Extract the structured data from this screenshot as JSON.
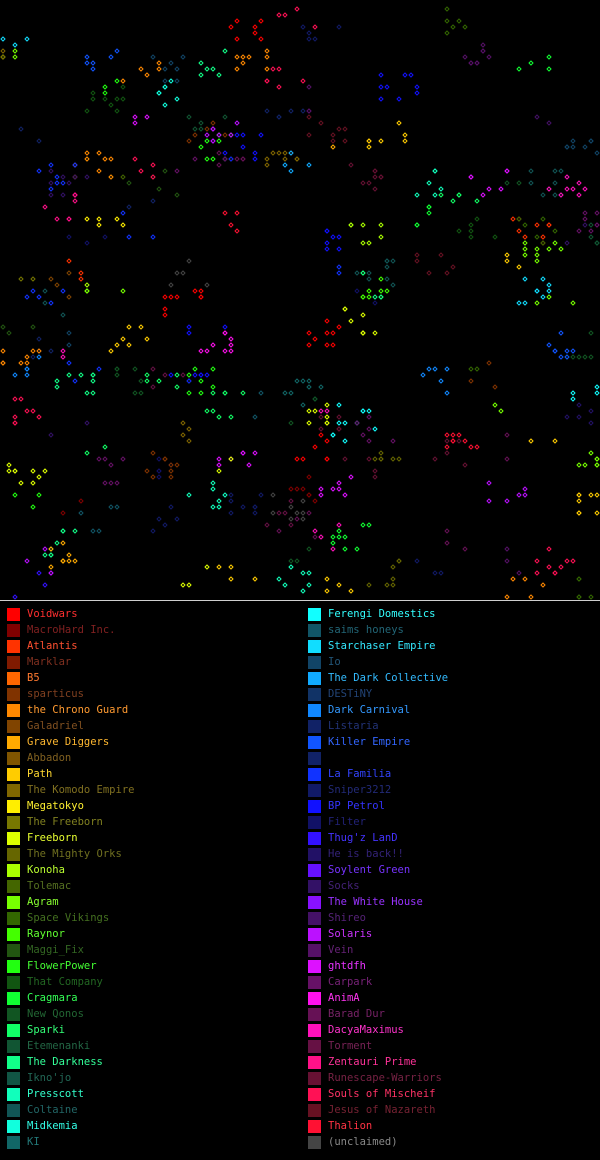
{
  "map": {
    "background": "#000000",
    "marker": "diamond",
    "description_icon": "territory-marker-icon"
  },
  "legend": {
    "left": [
      {
        "name": "Voidwars",
        "color": "#ff0000",
        "text_color": "#ff3030",
        "swatch": "#ff0000"
      },
      {
        "name": "MacroHard Inc.",
        "color": "#800000",
        "text_color": "#802020",
        "swatch": "#800000"
      },
      {
        "name": "Atlantis",
        "color": "#ff3300",
        "text_color": "#ff5030",
        "swatch": "#ff3300"
      },
      {
        "name": "Marklar",
        "color": "#801a00",
        "text_color": "#803020",
        "swatch": "#801a00"
      },
      {
        "name": "B5",
        "color": "#ff6600",
        "text_color": "#ff7a30",
        "swatch": "#ff6600"
      },
      {
        "name": "sparticus",
        "color": "#803300",
        "text_color": "#804020",
        "swatch": "#803300"
      },
      {
        "name": "the Chrono Guard",
        "color": "#ff8800",
        "text_color": "#ff9a30",
        "swatch": "#ff8800"
      },
      {
        "name": "Galadriel",
        "color": "#804400",
        "text_color": "#805020",
        "swatch": "#804400"
      },
      {
        "name": "Grave Diggers",
        "color": "#ffaa00",
        "text_color": "#ffb830",
        "swatch": "#ffaa00"
      },
      {
        "name": "Abbadon",
        "color": "#805500",
        "text_color": "#806020",
        "swatch": "#805500"
      },
      {
        "name": "Path",
        "color": "#ffcc00",
        "text_color": "#ffd830",
        "swatch": "#ffcc00"
      },
      {
        "name": "The Komodo Empire",
        "color": "#806600",
        "text_color": "#807020",
        "swatch": "#806600"
      },
      {
        "name": "Megatokyo",
        "color": "#ffee00",
        "text_color": "#fff030",
        "swatch": "#ffee00"
      },
      {
        "name": "The Freeborn",
        "color": "#777700",
        "text_color": "#808020",
        "swatch": "#777700"
      },
      {
        "name": "Freeborn",
        "color": "#ddff00",
        "text_color": "#e8ff30",
        "swatch": "#ddff00"
      },
      {
        "name": "The Mighty Orks",
        "color": "#666600",
        "text_color": "#707020",
        "swatch": "#666600"
      },
      {
        "name": "Konoha",
        "color": "#aaff00",
        "text_color": "#bbff30",
        "swatch": "#aaff00"
      },
      {
        "name": "Tolemac",
        "color": "#446600",
        "text_color": "#557020",
        "swatch": "#446600"
      },
      {
        "name": "Agram",
        "color": "#77ff00",
        "text_color": "#88ff30",
        "swatch": "#77ff00"
      },
      {
        "name": "Space Vikings",
        "color": "#336600",
        "text_color": "#447020",
        "swatch": "#336600"
      },
      {
        "name": "Raynor",
        "color": "#44ff00",
        "text_color": "#60ff30",
        "swatch": "#44ff00"
      },
      {
        "name": "Maggi_Fix",
        "color": "#225511",
        "text_color": "#336622",
        "swatch": "#225511"
      },
      {
        "name": "FlowerPower",
        "color": "#22ff11",
        "text_color": "#44ff33",
        "swatch": "#22ff11"
      },
      {
        "name": "That Company",
        "color": "#115511",
        "text_color": "#226622",
        "swatch": "#115511"
      },
      {
        "name": "Cragmara",
        "color": "#11ff33",
        "text_color": "#33ff55",
        "swatch": "#11ff33"
      },
      {
        "name": "New Qonos",
        "color": "#115522",
        "text_color": "#226633",
        "swatch": "#115522"
      },
      {
        "name": "Sparki",
        "color": "#11ff66",
        "text_color": "#33ff77",
        "swatch": "#11ff66"
      },
      {
        "name": "Etemenanki",
        "color": "#115533",
        "text_color": "#226644",
        "swatch": "#115533"
      },
      {
        "name": "The Darkness",
        "color": "#11ff88",
        "text_color": "#33ff99",
        "swatch": "#11ff88"
      },
      {
        "name": "Ikno'jo",
        "color": "#115544",
        "text_color": "#226655",
        "swatch": "#115544"
      },
      {
        "name": "Presscott",
        "color": "#11ffbb",
        "text_color": "#33ffcc",
        "swatch": "#11ffbb"
      },
      {
        "name": "Coltaine",
        "color": "#115555",
        "text_color": "#226666",
        "swatch": "#115555"
      },
      {
        "name": "Midkemia",
        "color": "#11ffdd",
        "text_color": "#33ffe8",
        "swatch": "#11ffdd"
      },
      {
        "name": "KI",
        "color": "#116666",
        "text_color": "#227777",
        "swatch": "#116666"
      }
    ],
    "right": [
      {
        "name": "Ferengi Domestics",
        "color": "#11ffff",
        "text_color": "#33ffff",
        "swatch": "#11ffff"
      },
      {
        "name": "saims honeys",
        "color": "#115566",
        "text_color": "#226677",
        "swatch": "#115566"
      },
      {
        "name": "Starchaser Empire",
        "color": "#11ddff",
        "text_color": "#33e8ff",
        "swatch": "#11ddff"
      },
      {
        "name": "Io",
        "color": "#114466",
        "text_color": "#225577",
        "swatch": "#114466"
      },
      {
        "name": "The Dark Collective",
        "color": "#11aaff",
        "text_color": "#33bbff",
        "swatch": "#11aaff"
      },
      {
        "name": "DESTiNY",
        "color": "#113366",
        "text_color": "#224477",
        "swatch": "#113366"
      },
      {
        "name": "Dark Carnival",
        "color": "#1188ff",
        "text_color": "#3399ff",
        "swatch": "#1188ff"
      },
      {
        "name": "Listaria",
        "color": "#112266",
        "text_color": "#223377",
        "swatch": "#112266"
      },
      {
        "name": "Killer Empire",
        "color": "#1155ff",
        "text_color": "#3366ff",
        "swatch": "#1155ff"
      },
      {
        "name": "",
        "color": "#112266",
        "text_color": "#223377",
        "swatch": "#112266"
      },
      {
        "name": "La Familia",
        "color": "#1133ff",
        "text_color": "#3344ff",
        "swatch": "#1133ff"
      },
      {
        "name": "Sniper3212",
        "color": "#111a66",
        "text_color": "#222a77",
        "swatch": "#111a66"
      },
      {
        "name": "BP Petrol",
        "color": "#1111ff",
        "text_color": "#3333ff",
        "swatch": "#1111ff"
      },
      {
        "name": "Filter",
        "color": "#111166",
        "text_color": "#222277",
        "swatch": "#111166"
      },
      {
        "name": "Thug'z LanD",
        "color": "#3311ff",
        "text_color": "#4433ff",
        "swatch": "#3311ff"
      },
      {
        "name": "He is back!!",
        "color": "#221166",
        "text_color": "#332277",
        "swatch": "#221166"
      },
      {
        "name": "Soylent Green",
        "color": "#6611ff",
        "text_color": "#7733ff",
        "swatch": "#6611ff"
      },
      {
        "name": "Socks",
        "color": "#331166",
        "text_color": "#442277",
        "swatch": "#331166"
      },
      {
        "name": "The White House",
        "color": "#8811ff",
        "text_color": "#9933ff",
        "swatch": "#8811ff"
      },
      {
        "name": "Shireo",
        "color": "#441166",
        "text_color": "#552277",
        "swatch": "#441166"
      },
      {
        "name": "Solaris",
        "color": "#bb11ff",
        "text_color": "#cc33ff",
        "swatch": "#bb11ff"
      },
      {
        "name": "Vein",
        "color": "#551166",
        "text_color": "#662277",
        "swatch": "#551166"
      },
      {
        "name": "ghtdfh",
        "color": "#dd11ff",
        "text_color": "#e833ff",
        "swatch": "#dd11ff"
      },
      {
        "name": "Carpark",
        "color": "#661166",
        "text_color": "#772277",
        "swatch": "#661166"
      },
      {
        "name": "AnimA",
        "color": "#ff11ee",
        "text_color": "#ff33f0",
        "swatch": "#ff11ee"
      },
      {
        "name": "Barad Dur",
        "color": "#661155",
        "text_color": "#772266",
        "swatch": "#661155"
      },
      {
        "name": "DacyaMaximus",
        "color": "#ff11bb",
        "text_color": "#ff33cc",
        "swatch": "#ff11bb"
      },
      {
        "name": "Torment",
        "color": "#661144",
        "text_color": "#772255",
        "swatch": "#661144"
      },
      {
        "name": "Zentauri Prime",
        "color": "#ff1188",
        "text_color": "#ff3399",
        "swatch": "#ff1188"
      },
      {
        "name": "Runescape-Warriors",
        "color": "#661133",
        "text_color": "#772244",
        "swatch": "#661133"
      },
      {
        "name": "Souls of Mischeif",
        "color": "#ff1155",
        "text_color": "#ff3366",
        "swatch": "#ff1155"
      },
      {
        "name": "Jesus of Nazareth",
        "color": "#661122",
        "text_color": "#772233",
        "swatch": "#661122"
      },
      {
        "name": "Thalion",
        "color": "#ff1133",
        "text_color": "#ff3344",
        "swatch": "#ff1133"
      },
      {
        "name": "(unclaimed)",
        "color": "#444444",
        "text_color": "#888888",
        "swatch": "#444444"
      }
    ]
  }
}
